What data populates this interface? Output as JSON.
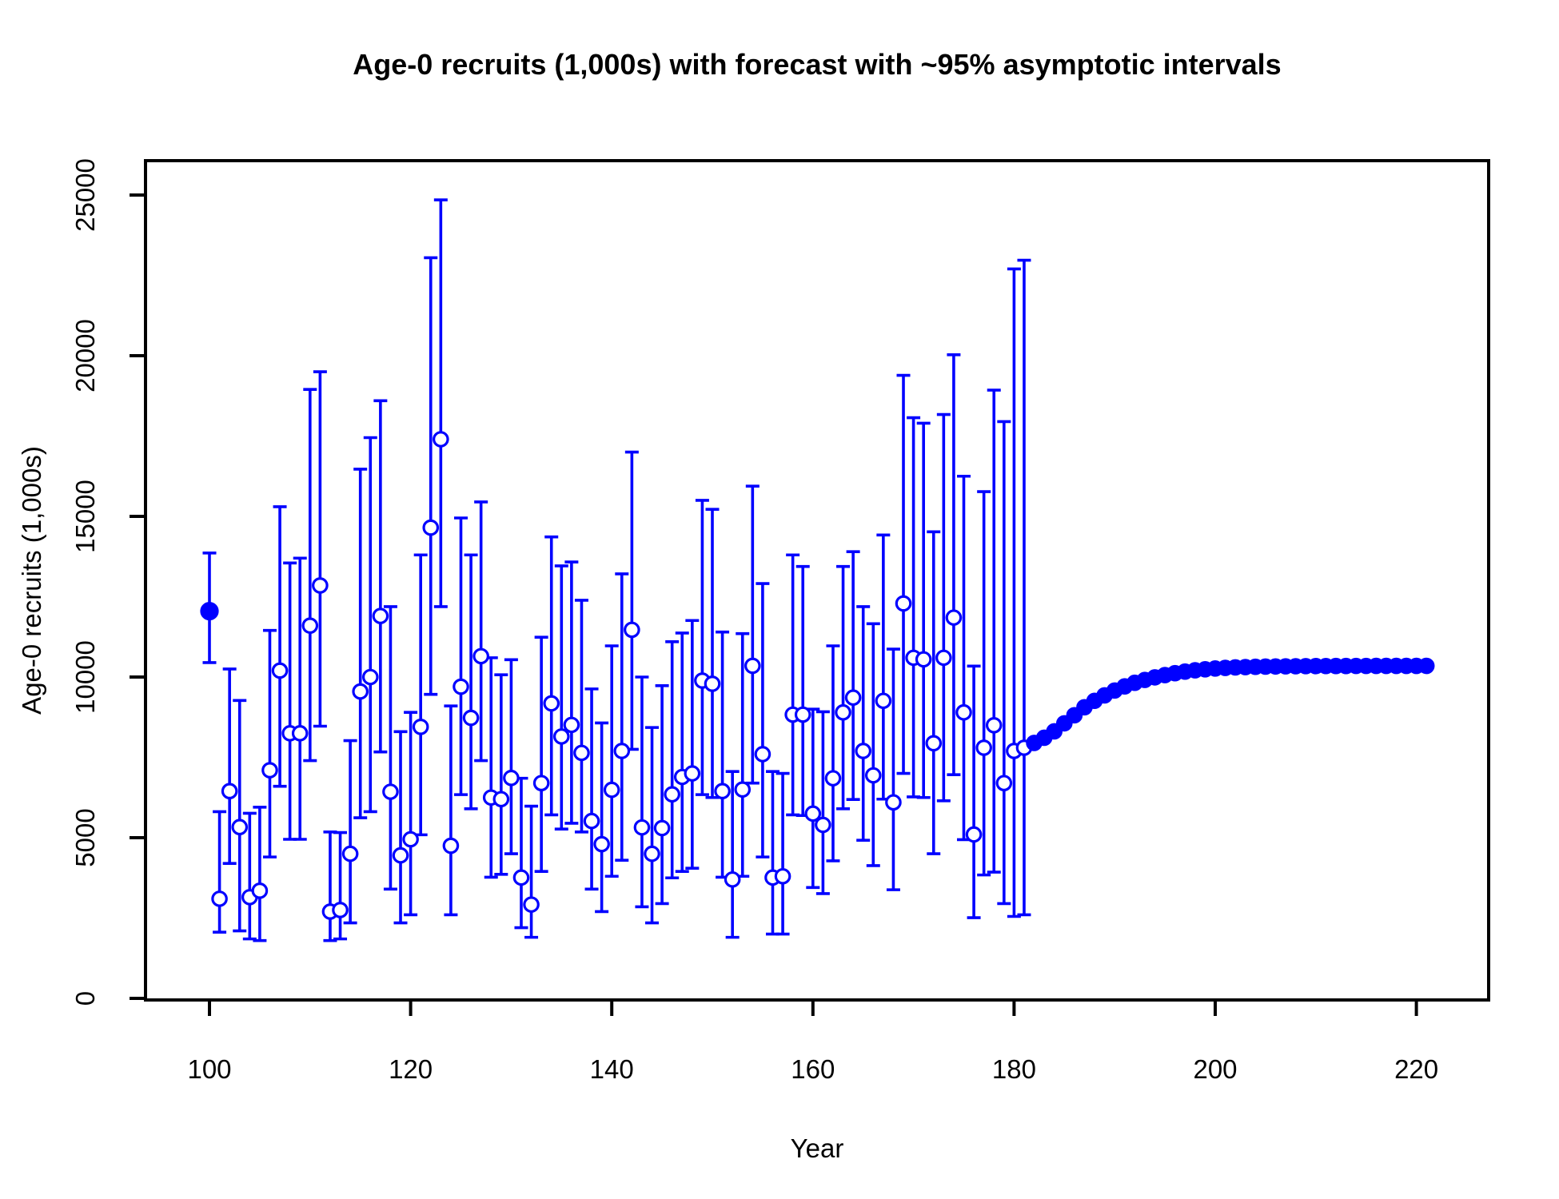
{
  "chart_data": {
    "type": "scatter",
    "title": "Age-0 recruits (1,000s) with forecast with ~95% asymptotic intervals",
    "xlabel": "Year",
    "ylabel": "Age-0 recruits (1,000s)",
    "x_ticks": [
      100,
      120,
      140,
      160,
      180,
      200,
      220
    ],
    "y_ticks": [
      0,
      5000,
      10000,
      15000,
      20000,
      25000
    ],
    "xlim": [
      93.6,
      227.2
    ],
    "ylim": [
      0,
      26100
    ],
    "grid": false,
    "legend": "none",
    "point_color": "#0000ff",
    "axis_color": "#000000",
    "background_color": "#ffffff",
    "observed": {
      "marker": "open-circle",
      "error_bars": true,
      "solid_marker_years": [
        100
      ],
      "points_format": [
        "year",
        "estimate",
        "lower95",
        "upper95"
      ],
      "points": [
        [
          100,
          12050,
          10450,
          13860
        ],
        [
          101,
          3100,
          2060,
          5810
        ],
        [
          102,
          6450,
          4200,
          10250
        ],
        [
          103,
          5330,
          2100,
          9270
        ],
        [
          104,
          3150,
          1850,
          5760
        ],
        [
          105,
          3350,
          1800,
          5950
        ],
        [
          106,
          7100,
          4400,
          11450
        ],
        [
          107,
          10200,
          6600,
          15300
        ],
        [
          108,
          8250,
          4950,
          13550
        ],
        [
          109,
          8250,
          4950,
          13700
        ],
        [
          110,
          11600,
          7400,
          18950
        ],
        [
          111,
          12850,
          8470,
          19500
        ],
        [
          112,
          2700,
          1800,
          5180
        ],
        [
          113,
          2750,
          1850,
          5160
        ],
        [
          114,
          4500,
          2350,
          8020
        ],
        [
          115,
          9550,
          5620,
          16470
        ],
        [
          116,
          10000,
          5810,
          17450
        ],
        [
          117,
          11900,
          7670,
          18600
        ],
        [
          118,
          6430,
          3400,
          12190
        ],
        [
          119,
          4450,
          2350,
          8300
        ],
        [
          120,
          4950,
          2600,
          8900
        ],
        [
          121,
          8450,
          5090,
          13800
        ],
        [
          122,
          14650,
          9460,
          23050
        ],
        [
          123,
          17400,
          12190,
          24850
        ],
        [
          124,
          4750,
          2600,
          9100
        ],
        [
          125,
          9700,
          6340,
          14950
        ],
        [
          126,
          8730,
          5900,
          13800
        ],
        [
          127,
          10650,
          7400,
          15450
        ],
        [
          128,
          6250,
          3770,
          10600
        ],
        [
          129,
          6200,
          3860,
          10070
        ],
        [
          130,
          6860,
          4500,
          10540
        ],
        [
          131,
          3760,
          2200,
          6850
        ],
        [
          132,
          2920,
          1900,
          5980
        ],
        [
          133,
          6700,
          3950,
          11240
        ],
        [
          134,
          9180,
          5710,
          14360
        ],
        [
          135,
          8150,
          5270,
          13460
        ],
        [
          136,
          8510,
          5450,
          13580
        ],
        [
          137,
          7640,
          5180,
          12390
        ],
        [
          138,
          5520,
          3400,
          9630
        ],
        [
          139,
          4800,
          2700,
          8570
        ],
        [
          140,
          6490,
          3800,
          10970
        ],
        [
          141,
          7700,
          4300,
          13210
        ],
        [
          142,
          11470,
          7750,
          17000
        ],
        [
          143,
          5320,
          2850,
          10000
        ],
        [
          144,
          4500,
          2350,
          8430
        ],
        [
          145,
          5300,
          2950,
          9730
        ],
        [
          146,
          6350,
          3750,
          11100
        ],
        [
          147,
          6890,
          3950,
          11370
        ],
        [
          148,
          7000,
          4050,
          11760
        ],
        [
          149,
          9890,
          6340,
          15500
        ],
        [
          150,
          9790,
          6250,
          15220
        ],
        [
          151,
          6450,
          3770,
          11400
        ],
        [
          152,
          3700,
          1900,
          7060
        ],
        [
          153,
          6500,
          3800,
          11350
        ],
        [
          154,
          10350,
          6700,
          15940
        ],
        [
          155,
          7600,
          4400,
          12910
        ],
        [
          156,
          3760,
          2000,
          7060
        ],
        [
          157,
          3800,
          2000,
          7000
        ],
        [
          158,
          8830,
          5710,
          13800
        ],
        [
          159,
          8830,
          5690,
          13440
        ],
        [
          160,
          5750,
          3450,
          9000
        ],
        [
          161,
          5400,
          3260,
          8920
        ],
        [
          162,
          6850,
          4280,
          10970
        ],
        [
          163,
          8900,
          5900,
          13440
        ],
        [
          164,
          9360,
          6190,
          13900
        ],
        [
          165,
          7700,
          4920,
          12190
        ],
        [
          166,
          6940,
          4130,
          11660
        ],
        [
          167,
          9260,
          6200,
          14420
        ],
        [
          168,
          6100,
          3380,
          10870
        ],
        [
          169,
          12290,
          7000,
          19390
        ],
        [
          170,
          10600,
          6270,
          18070
        ],
        [
          171,
          10550,
          6250,
          17900
        ],
        [
          172,
          7940,
          4500,
          14520
        ],
        [
          173,
          10600,
          6150,
          18170
        ],
        [
          174,
          11850,
          6960,
          20030
        ],
        [
          175,
          8900,
          4940,
          16250
        ],
        [
          176,
          5100,
          2510,
          10340
        ],
        [
          177,
          7800,
          3840,
          15770
        ],
        [
          178,
          8500,
          3930,
          18930
        ],
        [
          179,
          6700,
          2950,
          17950
        ],
        [
          180,
          7700,
          2550,
          22700
        ],
        [
          181,
          7800,
          2600,
          22970
        ]
      ]
    },
    "forecast": {
      "marker": "filled-circle",
      "error_bars": false,
      "points_format": [
        "year",
        "estimate"
      ],
      "points": [
        [
          182,
          7950
        ],
        [
          183,
          8110
        ],
        [
          184,
          8310
        ],
        [
          185,
          8560
        ],
        [
          186,
          8810
        ],
        [
          187,
          9060
        ],
        [
          188,
          9260
        ],
        [
          189,
          9430
        ],
        [
          190,
          9580
        ],
        [
          191,
          9710
        ],
        [
          192,
          9820
        ],
        [
          193,
          9910
        ],
        [
          194,
          9990
        ],
        [
          195,
          10060
        ],
        [
          196,
          10120
        ],
        [
          197,
          10170
        ],
        [
          198,
          10210
        ],
        [
          199,
          10240
        ],
        [
          200,
          10265
        ],
        [
          201,
          10285
        ],
        [
          202,
          10300
        ],
        [
          203,
          10310
        ],
        [
          204,
          10318
        ],
        [
          205,
          10324
        ],
        [
          206,
          10329
        ],
        [
          207,
          10333
        ],
        [
          208,
          10336
        ],
        [
          209,
          10339
        ],
        [
          210,
          10341
        ],
        [
          211,
          10342
        ],
        [
          212,
          10343
        ],
        [
          213,
          10344
        ],
        [
          214,
          10345
        ],
        [
          215,
          10345
        ],
        [
          216,
          10346
        ],
        [
          217,
          10346
        ],
        [
          218,
          10347
        ],
        [
          219,
          10347
        ],
        [
          220,
          10347
        ],
        [
          221,
          10347
        ]
      ]
    }
  }
}
